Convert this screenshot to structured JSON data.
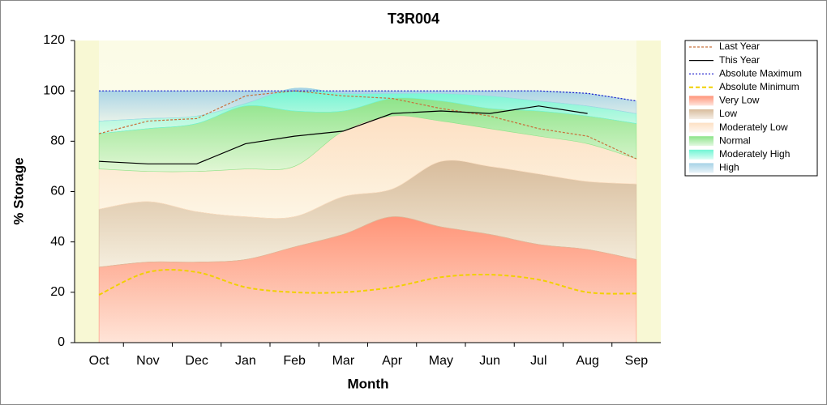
{
  "chart_data": {
    "type": "area",
    "title": "T3R004",
    "x_label": "Month",
    "y_label": "% Storage",
    "categories": [
      "Oct",
      "Nov",
      "Dec",
      "Jan",
      "Feb",
      "Mar",
      "Apr",
      "May",
      "Jun",
      "Jul",
      "Aug",
      "Sep"
    ],
    "ylim": [
      0,
      120
    ],
    "yticks": [
      0,
      20,
      40,
      60,
      80,
      100,
      120
    ],
    "series": [
      {
        "name": "Last Year",
        "style": "line",
        "dash": "3,2",
        "color": "#c8703c",
        "values": [
          83,
          88,
          89,
          98,
          100,
          98,
          97,
          93,
          90,
          85,
          82,
          73
        ]
      },
      {
        "name": "This Year",
        "style": "line",
        "dash": "none",
        "color": "#000000",
        "values": [
          72,
          71,
          71,
          79,
          82,
          84,
          91,
          92,
          91,
          94,
          91,
          null
        ]
      },
      {
        "name": "Absolute Maximum",
        "style": "line",
        "dash": "2,2",
        "color": "#1a1acc",
        "values": [
          100,
          100,
          100,
          100,
          100,
          100,
          100,
          100,
          100,
          100,
          99,
          96
        ]
      },
      {
        "name": "Absolute Minimum",
        "style": "line",
        "dash": "5,3",
        "color": "#f0d000",
        "values": [
          19,
          28,
          28,
          22,
          20,
          20,
          22,
          26,
          27,
          25,
          20,
          19.5
        ]
      },
      {
        "name": "Very Low",
        "style": "band",
        "color": "#ff9478",
        "values": [
          30,
          32,
          32,
          33,
          38,
          43,
          50,
          46,
          43,
          39,
          37,
          33
        ]
      },
      {
        "name": "Low",
        "style": "band",
        "color": "#d8bc9c",
        "values": [
          53,
          56,
          52,
          50,
          50,
          58,
          61,
          72,
          70,
          67,
          64,
          63
        ]
      },
      {
        "name": "Moderately Low",
        "style": "band",
        "color": "#fde0c4",
        "values": [
          69,
          68,
          68,
          69,
          70,
          84,
          90,
          88,
          85,
          82,
          79,
          73
        ]
      },
      {
        "name": "Normal",
        "style": "band",
        "color": "#8ee48a",
        "values": [
          83,
          85,
          87,
          94,
          92,
          92,
          97,
          96,
          93,
          92,
          90,
          87
        ]
      },
      {
        "name": "Moderately High",
        "style": "band",
        "color": "#6ff5d4",
        "values": [
          88,
          89,
          90,
          95,
          101,
          99,
          99,
          99,
          98,
          96,
          94,
          91
        ]
      },
      {
        "name": "High",
        "style": "band",
        "color": "#a6d2e6",
        "values": [
          100,
          100,
          100,
          100,
          100,
          100,
          100,
          100,
          100,
          100,
          99,
          96
        ]
      }
    ]
  }
}
